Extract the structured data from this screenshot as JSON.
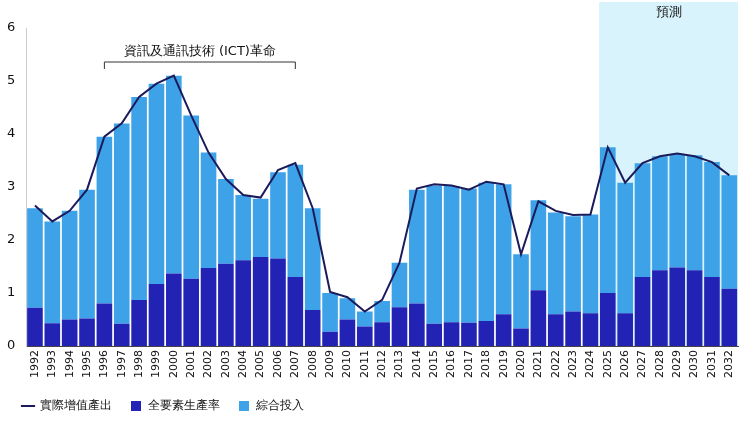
{
  "chart_data": {
    "type": "bar",
    "stacked": true,
    "grid": false,
    "legend": "bottom",
    "categories": [
      "1992",
      "1993",
      "1994",
      "1995",
      "1996",
      "1997",
      "1998",
      "1999",
      "2000",
      "2001",
      "2002",
      "2003",
      "2004",
      "2005",
      "2006",
      "2007",
      "2008",
      "2009",
      "2010",
      "2011",
      "2012",
      "2013",
      "2014",
      "2015",
      "2016",
      "2017",
      "2018",
      "2019",
      "2020",
      "2021",
      "2022",
      "2023",
      "2024",
      "2025",
      "2026",
      "2027",
      "2028",
      "2029",
      "2030",
      "2031",
      "2032"
    ],
    "series": [
      {
        "name": "全要素生產率",
        "type": "bar",
        "color": "#2222b4",
        "values": [
          0.72,
          0.43,
          0.5,
          0.52,
          0.8,
          0.42,
          0.87,
          1.17,
          1.37,
          1.27,
          1.47,
          1.55,
          1.62,
          1.68,
          1.65,
          1.3,
          0.68,
          0.27,
          0.5,
          0.37,
          0.45,
          0.73,
          0.8,
          0.42,
          0.45,
          0.44,
          0.47,
          0.6,
          0.33,
          1.05,
          0.6,
          0.65,
          0.62,
          1.0,
          0.62,
          1.3,
          1.43,
          1.48,
          1.43,
          1.3,
          1.08
        ]
      },
      {
        "name": "綜合投入",
        "type": "bar",
        "color": "#3ea2e8",
        "values": [
          1.88,
          1.92,
          2.05,
          2.43,
          3.15,
          3.78,
          3.83,
          3.78,
          3.73,
          3.08,
          2.18,
          1.6,
          1.23,
          1.1,
          1.63,
          2.12,
          1.92,
          0.73,
          0.4,
          0.28,
          0.4,
          0.84,
          2.15,
          2.61,
          2.57,
          2.53,
          2.61,
          2.45,
          1.4,
          1.7,
          1.92,
          1.8,
          1.86,
          2.75,
          2.46,
          2.15,
          2.15,
          2.14,
          2.17,
          2.17,
          2.14
        ]
      },
      {
        "name": "實際增值產出",
        "type": "line",
        "color": "#1b1b5c",
        "values": [
          2.65,
          2.35,
          2.55,
          2.95,
          3.95,
          4.2,
          4.7,
          4.95,
          5.1,
          4.35,
          3.65,
          3.15,
          2.85,
          2.8,
          3.32,
          3.45,
          2.6,
          1.02,
          0.92,
          0.65,
          0.87,
          1.57,
          2.97,
          3.05,
          3.03,
          2.95,
          3.1,
          3.05,
          1.73,
          2.73,
          2.55,
          2.47,
          2.48,
          3.75,
          3.08,
          3.45,
          3.58,
          3.63,
          3.58,
          3.47,
          3.22
        ]
      }
    ],
    "ylim": [
      0,
      6
    ],
    "yticks": [
      0,
      1,
      2,
      3,
      4,
      5,
      6
    ],
    "annotations": [
      {
        "text": "資訊及通訊技術 (ICT)革命",
        "type": "bracket",
        "start": "1996",
        "end": "2007"
      },
      {
        "text": "預測",
        "type": "region",
        "start": "2025",
        "end": "2032",
        "color": "#d8f3fb"
      }
    ]
  }
}
